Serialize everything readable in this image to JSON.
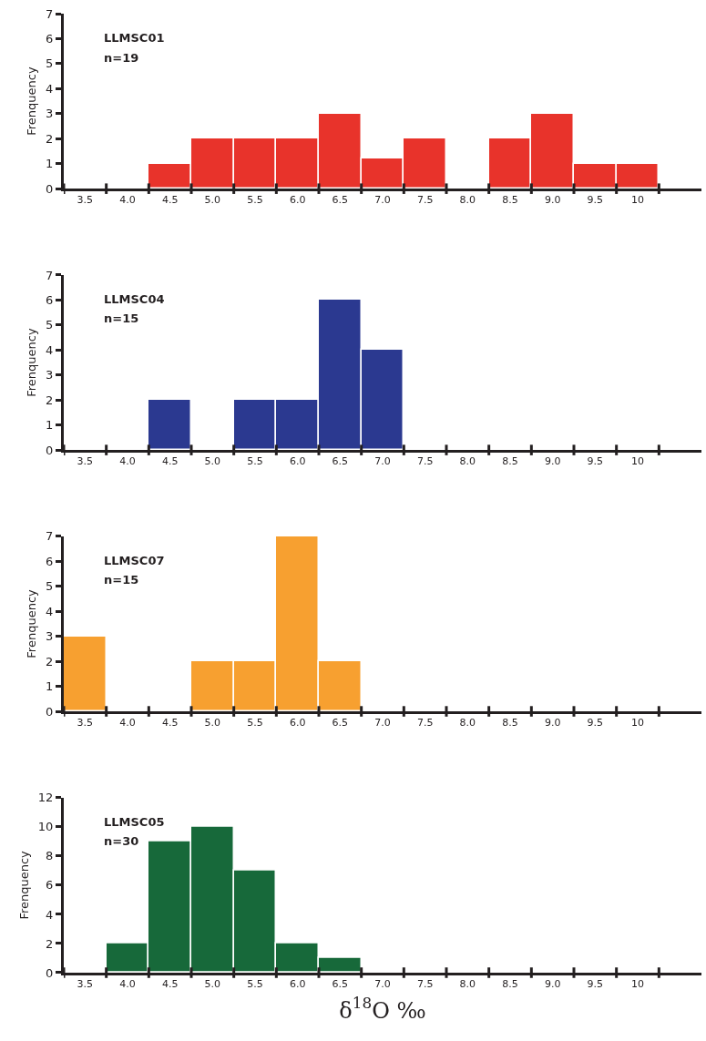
{
  "chart_data": [
    {
      "type": "bar",
      "categories": [
        "3.5",
        "4.0",
        "4.5",
        "5.0",
        "5.5",
        "6.0",
        "6.5",
        "7.0",
        "7.5",
        "8.0",
        "8.5",
        "9.0",
        "9.5",
        "10"
      ],
      "values": [
        null,
        null,
        1,
        2,
        2,
        2,
        3,
        1.2,
        2,
        null,
        2,
        3,
        1,
        1
      ],
      "color": "#e8332b",
      "ylabel": "Frenquency",
      "ylim": [
        0,
        7
      ],
      "yticks": [
        0,
        1,
        2,
        3,
        4,
        5,
        6,
        7
      ],
      "annotations": [
        "LLMSC01",
        "n=19"
      ]
    },
    {
      "type": "bar",
      "categories": [
        "3.5",
        "4.0",
        "4.5",
        "5.0",
        "5.5",
        "6.0",
        "6.5",
        "7.0",
        "7.5",
        "8.0",
        "8.5",
        "9.0",
        "9.5",
        "10"
      ],
      "values": [
        null,
        null,
        2,
        null,
        2,
        2,
        6,
        4,
        null,
        null,
        null,
        null,
        null,
        null
      ],
      "color": "#2b3990",
      "ylabel": "Frenquency",
      "ylim": [
        0,
        7
      ],
      "yticks": [
        0,
        1,
        2,
        3,
        4,
        5,
        6,
        7
      ],
      "annotations": [
        "LLMSC04",
        "n=15"
      ]
    },
    {
      "type": "bar",
      "categories": [
        "3.5",
        "4.0",
        "4.5",
        "5.0",
        "5.5",
        "6.0",
        "6.5",
        "7.0",
        "7.5",
        "8.0",
        "8.5",
        "9.0",
        "9.5",
        "10"
      ],
      "values": [
        3,
        null,
        null,
        2,
        2,
        7,
        2,
        null,
        null,
        null,
        null,
        null,
        null,
        null
      ],
      "color": "#f7a030",
      "ylabel": "Frenquency",
      "ylim": [
        0,
        7
      ],
      "yticks": [
        0,
        1,
        2,
        3,
        4,
        5,
        6,
        7
      ],
      "annotations": [
        "LLMSC07",
        "n=15"
      ]
    },
    {
      "type": "bar",
      "categories": [
        "3.5",
        "4.0",
        "4.5",
        "5.0",
        "5.5",
        "6.0",
        "6.5",
        "7.0",
        "7.5",
        "8.0",
        "8.5",
        "9.0",
        "9.5",
        "10"
      ],
      "values": [
        null,
        2,
        9,
        10,
        7,
        2,
        1,
        null,
        null,
        null,
        null,
        null,
        null,
        null
      ],
      "color": "#17693a",
      "xlabel": "δ$^{18}$O ‰",
      "ylabel": "Frenquency",
      "ylim": [
        0,
        12
      ],
      "yticks": [
        0,
        2,
        4,
        6,
        8,
        10,
        12
      ],
      "annotations": [
        "LLMSC05",
        "n=30"
      ]
    }
  ]
}
